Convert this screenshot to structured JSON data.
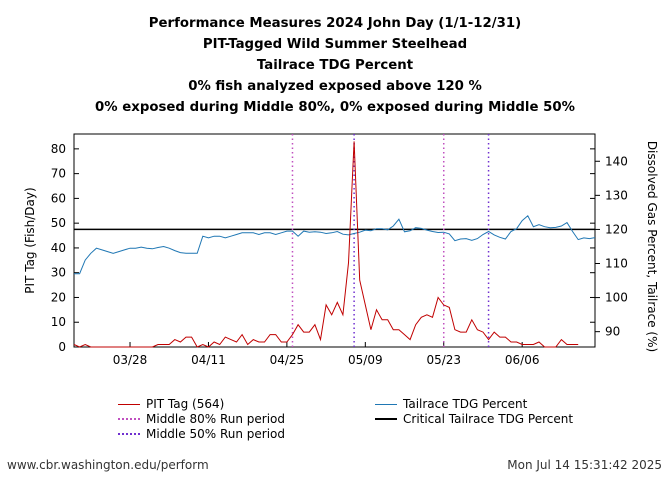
{
  "chart_data": {
    "type": "line",
    "title_lines": [
      "Performance Measures 2024 John Day (1/1-12/31)",
      "PIT-Tagged Wild Summer Steelhead",
      "Tailrace TDG Percent",
      "0% fish analyzed exposed above 120 %",
      "0% exposed during Middle 80%, 0% exposed during Middle 50%"
    ],
    "ylabel": "PIT Tag (Fish/Day)",
    "y2label": "Dissolved Gas Percent, Tailrace (%)",
    "ylim": [
      0,
      86
    ],
    "y2lim": [
      85.5,
      148
    ],
    "yticks": [
      0,
      10,
      20,
      30,
      40,
      50,
      60,
      70,
      80
    ],
    "y2ticks": [
      90,
      100,
      110,
      120,
      130,
      140
    ],
    "xlim_day": [
      0,
      93
    ],
    "xticks": [
      {
        "day": 10,
        "label": "03/28"
      },
      {
        "day": 24,
        "label": "04/11"
      },
      {
        "day": 38,
        "label": "04/25"
      },
      {
        "day": 52,
        "label": "05/09"
      },
      {
        "day": 66,
        "label": "05/23"
      },
      {
        "day": 80,
        "label": "06/06"
      }
    ],
    "critical_tdg": 120,
    "middle80_days": [
      39,
      66
    ],
    "middle50_days": [
      50,
      74
    ],
    "series": [
      {
        "name": "PIT Tag (564)",
        "axis": "left",
        "color": "#c00000",
        "values": [
          1,
          0,
          1,
          0,
          0,
          0,
          0,
          0,
          0,
          0,
          0,
          0,
          0,
          0,
          0,
          1,
          1,
          1,
          3,
          2,
          4,
          4,
          0,
          1,
          0,
          2,
          1,
          4,
          3,
          2,
          5,
          1,
          3,
          2,
          2,
          5,
          5,
          2,
          2,
          5,
          9,
          6,
          6,
          9,
          3,
          17,
          13,
          18,
          13,
          34,
          83,
          27,
          17,
          7,
          15,
          11,
          11,
          7,
          7,
          5,
          3,
          9,
          12,
          13,
          12,
          20,
          17,
          16,
          7,
          6,
          6,
          11,
          7,
          6,
          3,
          6,
          4,
          4,
          2,
          2,
          1,
          1,
          1,
          2,
          0,
          0,
          0,
          3,
          1,
          1,
          1
        ],
        "x_start_day": 0
      },
      {
        "name": "Tailrace TDG Percent",
        "axis": "right",
        "color": "#1f77b4",
        "values": [
          107,
          107,
          111,
          113,
          114.5,
          114,
          113.5,
          113,
          113.5,
          114,
          114.5,
          114.5,
          114.8,
          114.5,
          114.3,
          114.7,
          115,
          114.5,
          113.8,
          113.2,
          113,
          113,
          113,
          118,
          117.5,
          118,
          118,
          117.5,
          118,
          118.5,
          119,
          119,
          119,
          118.5,
          119,
          119,
          118.5,
          119,
          119.5,
          119.5,
          118,
          119.5,
          119.2,
          119.3,
          119.2,
          118.8,
          119,
          119.4,
          118.6,
          118.4,
          118.8,
          119.2,
          119.8,
          119.6,
          120.2,
          120.2,
          119.9,
          121,
          123,
          119.3,
          119.6,
          120.5,
          120.3,
          119.8,
          119.4,
          119.1,
          119.2,
          118.7,
          116.7,
          117.2,
          117.3,
          116.8,
          117.3,
          118.5,
          119.4,
          118.4,
          117.7,
          117.2,
          119.4,
          120.2,
          122.6,
          124,
          120.8,
          121.4,
          120.8,
          120.5,
          120.6,
          121,
          122,
          119.4,
          117,
          117.5,
          117.3,
          117.6
        ],
        "x_start_day": 0
      },
      {
        "name": "Middle 80% Run period",
        "style": "dotted",
        "color": "#c050c0"
      },
      {
        "name": "Middle 50% Run period",
        "style": "dotted",
        "color": "#7030d0"
      },
      {
        "name": "Critical Tailrace TDG Percent",
        "style": "solid",
        "color": "#000000"
      }
    ]
  },
  "footer": {
    "url": "www.cbr.washington.edu/perform",
    "timestamp": "Mon Jul 14 15:31:42 2025"
  }
}
